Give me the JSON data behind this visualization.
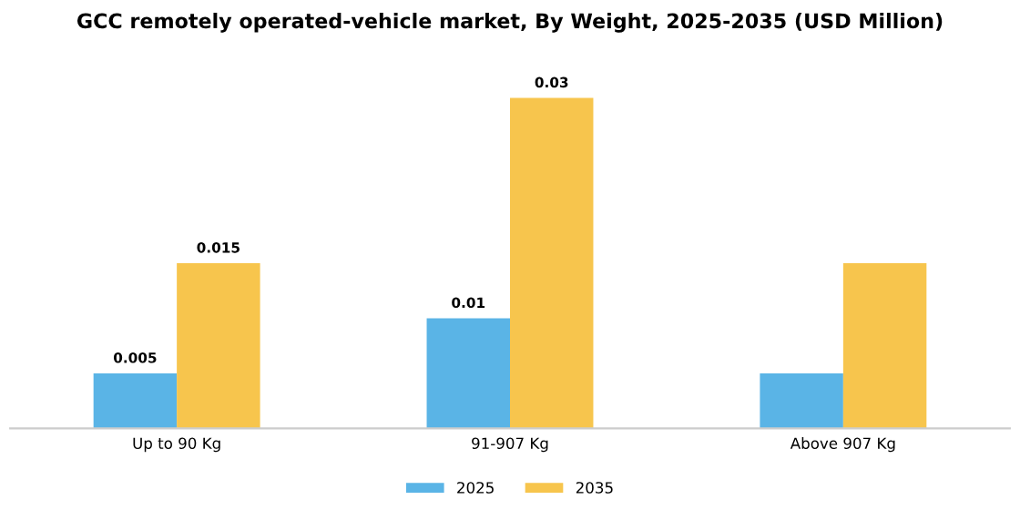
{
  "chart_data": {
    "type": "bar",
    "title": "GCC remotely operated-vehicle market, By Weight, 2025-2035 (USD Million)",
    "categories": [
      "Up to 90 Kg",
      "91-907 Kg",
      "Above 907 Kg"
    ],
    "series": [
      {
        "name": "2025",
        "color": "#5ab4e6",
        "values": [
          0.005,
          0.01,
          0.005
        ],
        "value_labels": [
          "0.005",
          "0.01",
          null
        ]
      },
      {
        "name": "2035",
        "color": "#f7c54d",
        "values": [
          0.015,
          0.03,
          0.015
        ],
        "value_labels": [
          "0.015",
          "0.03",
          null
        ]
      }
    ],
    "legend": "bottom",
    "grid": false
  }
}
